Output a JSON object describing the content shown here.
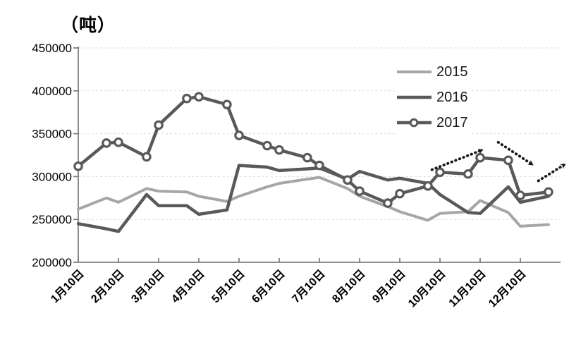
{
  "chart_data": {
    "type": "line",
    "title": "（吨）",
    "x_tick_labels": [
      "1月10日",
      "2月10日",
      "3月10日",
      "4月10日",
      "5月10日",
      "6月10日",
      "7月10日",
      "8月10日",
      "9月10日",
      "10月10日",
      "11月10日",
      "12月10日"
    ],
    "y_axis": {
      "min": 200000,
      "max": 450000,
      "step": 50000,
      "tick_labels": [
        "200000",
        "250000",
        "300000",
        "350000",
        "400000",
        "450000"
      ]
    },
    "grid": "horizontal-dashed",
    "legend_position": "top-right-inside",
    "points_per_category": 2,
    "series": [
      {
        "name": "2015",
        "color": "#a6a6a6",
        "marker": "none",
        "line_width": 4,
        "values": [
          262000,
          275000,
          270000,
          286000,
          283000,
          282000,
          277000,
          271000,
          277000,
          288000,
          292000,
          297000,
          299000,
          286000,
          277000,
          265000,
          259000,
          249000,
          257000,
          259000,
          272000,
          258000,
          242000,
          244000
        ]
      },
      {
        "name": "2016",
        "color": "#595959",
        "marker": "none",
        "line_width": 4.5,
        "values": [
          245000,
          239000,
          236000,
          279000,
          266000,
          266000,
          256000,
          261000,
          313000,
          311000,
          307000,
          309000,
          310000,
          297000,
          306000,
          296000,
          298000,
          292000,
          279000,
          258000,
          257000,
          288000,
          270000,
          277000
        ]
      },
      {
        "name": "2017",
        "color": "#595959",
        "marker": "circle",
        "line_width": 4.5,
        "values": [
          312000,
          339000,
          340000,
          323000,
          360000,
          391000,
          393000,
          384000,
          348000,
          336000,
          331000,
          322000,
          313000,
          296000,
          283000,
          269000,
          280000,
          289000,
          305000,
          303000,
          322000,
          319000,
          278000,
          282000
        ]
      }
    ],
    "annotations": {
      "trend_arrows": [
        {
          "direction": "up",
          "from": {
            "month": 8.8,
            "value": 308000
          },
          "to": {
            "month": 10.05,
            "value": 331000
          }
        },
        {
          "direction": "down",
          "from": {
            "month": 10.45,
            "value": 340000
          },
          "to": {
            "month": 11.3,
            "value": 314000
          }
        },
        {
          "direction": "up",
          "from": {
            "month": 11.45,
            "value": 295000
          },
          "to": {
            "month": 12.1,
            "value": 314000
          }
        }
      ]
    },
    "colors": {
      "axis": "#808080",
      "grid": "#d9d9d9",
      "arrow": "#1a1a1a",
      "marker_fill": "#ffffff",
      "text": "#000000"
    }
  }
}
